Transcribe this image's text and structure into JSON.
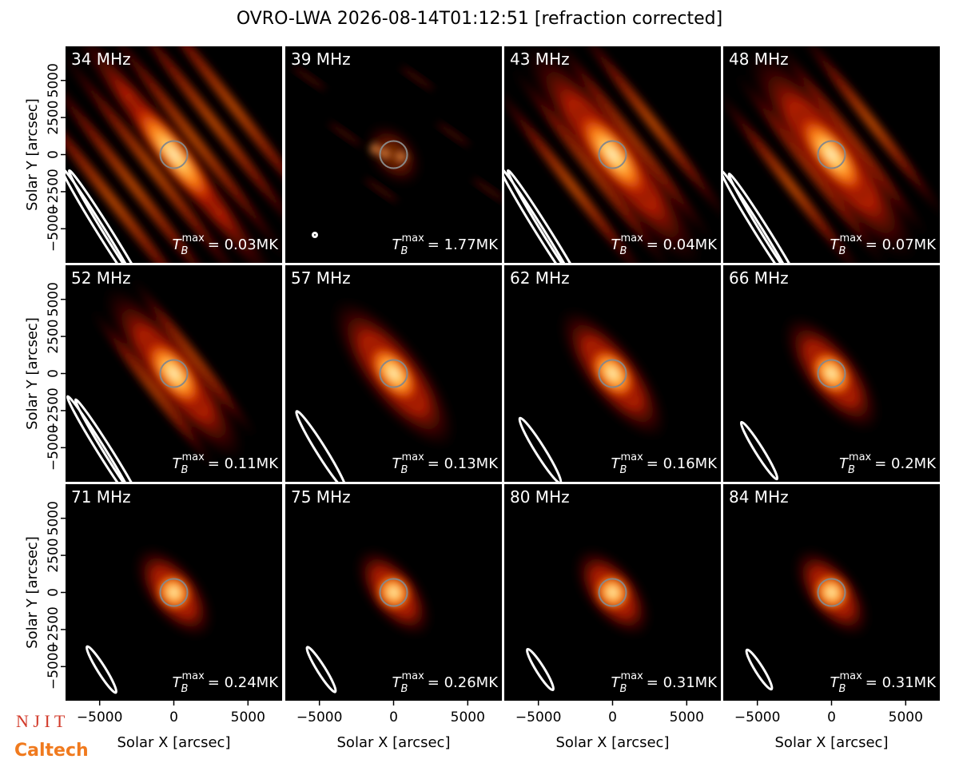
{
  "figure": {
    "title": "OVRO-LWA 2026-08-14T01:12:51 [refraction corrected]",
    "xlabel": "Solar X [arcsec]",
    "ylabel": "Solar Y [arcsec]",
    "tb_symbol": "T",
    "tb_sub": "B",
    "tb_sup": "max",
    "logos": [
      "N J I T",
      "Caltech"
    ]
  },
  "axes": {
    "xlim": [
      -7300,
      7300
    ],
    "ylim": [
      -7300,
      7300
    ],
    "xticks": [
      {
        "value": -5000,
        "label": "−5000"
      },
      0,
      5000
    ],
    "yticks": [
      {
        "value": -5000,
        "label": "−5000"
      },
      {
        "value": -2500,
        "label": "−2500"
      },
      0,
      2500,
      5000
    ]
  },
  "chart_data": [
    {
      "type": "image",
      "title": "34 MHz",
      "value": 0.03,
      "value_label": "= 0.03MK"
    },
    {
      "type": "image",
      "title": "39 MHz",
      "value": 1.77,
      "value_label": "= 1.77MK"
    },
    {
      "type": "image",
      "title": "43 MHz",
      "value": 0.04,
      "value_label": "= 0.04MK"
    },
    {
      "type": "image",
      "title": "48 MHz",
      "value": 0.07,
      "value_label": "= 0.07MK"
    },
    {
      "type": "image",
      "title": "52 MHz",
      "value": 0.11,
      "value_label": "= 0.11MK"
    },
    {
      "type": "image",
      "title": "57 MHz",
      "value": 0.13,
      "value_label": "= 0.13MK"
    },
    {
      "type": "image",
      "title": "62 MHz",
      "value": 0.16,
      "value_label": "= 0.16MK"
    },
    {
      "type": "image",
      "title": "66 MHz",
      "value": 0.2,
      "value_label": "= 0.2MK"
    },
    {
      "type": "image",
      "title": "71 MHz",
      "value": 0.24,
      "value_label": "= 0.24MK"
    },
    {
      "type": "image",
      "title": "75 MHz",
      "value": 0.26,
      "value_label": "= 0.26MK"
    },
    {
      "type": "image",
      "title": "80 MHz",
      "value": 0.31,
      "value_label": "= 0.31MK"
    },
    {
      "type": "image",
      "title": "84 MHz",
      "value": 0.31,
      "value_label": "= 0.31MK"
    }
  ]
}
